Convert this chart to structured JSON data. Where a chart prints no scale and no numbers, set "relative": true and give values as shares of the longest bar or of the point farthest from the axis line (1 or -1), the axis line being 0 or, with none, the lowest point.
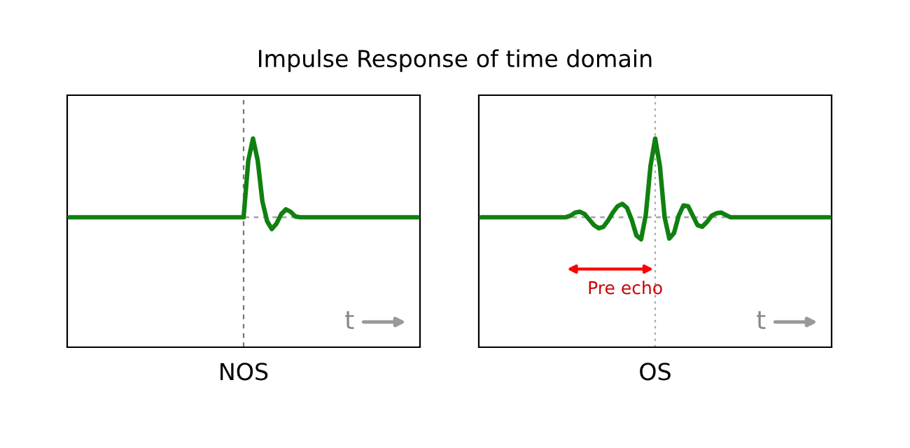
{
  "chart_data": [
    {
      "type": "line",
      "title": "Impulse Response of time domain",
      "xlabel": "NOS",
      "relative": true,
      "categories": [
        null,
        null,
        null,
        null,
        null,
        null,
        null,
        null,
        null,
        null,
        null,
        null,
        null,
        null,
        null,
        null,
        null,
        null,
        null,
        null,
        null,
        null,
        null,
        null,
        null,
        null,
        null,
        null,
        null,
        null,
        null,
        null,
        null,
        null,
        null,
        null,
        null,
        null,
        null,
        null,
        null,
        null,
        null,
        null,
        null,
        null,
        null,
        null,
        null,
        null,
        null,
        null,
        null,
        null,
        null,
        null,
        null,
        null,
        null,
        null,
        null,
        null,
        null,
        null,
        null,
        null,
        null,
        null,
        null,
        null,
        null,
        null,
        null,
        null,
        null
      ],
      "series": [
        {
          "color": "#108010",
          "values": [
            0,
            0,
            0,
            0,
            0,
            0,
            0,
            0,
            0,
            0,
            0,
            0,
            0,
            0,
            0,
            0,
            0,
            0,
            0,
            0,
            0,
            0,
            0,
            0,
            0,
            0,
            0,
            0,
            0,
            0,
            0,
            0,
            0,
            0,
            0,
            0,
            0,
            0,
            0.72,
            1,
            0.72,
            0.2,
            -0.05,
            -0.15,
            -0.08,
            0.04,
            0.1,
            0.07,
            0.01,
            0,
            0,
            0,
            0,
            0,
            0,
            0,
            0,
            0,
            0,
            0,
            0,
            0,
            0,
            0,
            0,
            0,
            0,
            0,
            0,
            0,
            0,
            0,
            0,
            0,
            0
          ]
        }
      ],
      "ref_lines": [
        {
          "axis": "y",
          "value": 0,
          "color": "#999999",
          "line_style": "dashed"
        }
      ],
      "annotations": [
        "t"
      ]
    },
    {
      "type": "line",
      "xlabel": "OS",
      "relative": true,
      "categories": [
        null,
        null,
        null,
        null,
        null,
        null,
        null,
        null,
        null,
        null,
        null,
        null,
        null,
        null,
        null,
        null,
        null,
        null,
        null,
        null,
        null,
        null,
        null,
        null,
        null,
        null,
        null,
        null,
        null,
        null,
        null,
        null,
        null,
        null,
        null,
        null,
        null,
        null,
        null,
        null,
        null,
        null,
        null,
        null,
        null,
        null,
        null,
        null,
        null,
        null,
        null,
        null,
        null,
        null,
        null,
        null,
        null,
        null,
        null,
        null,
        null,
        null,
        null,
        null,
        null,
        null,
        null,
        null,
        null,
        null,
        null,
        null,
        null,
        null,
        null
      ],
      "series": [
        {
          "color": "#108010",
          "values": [
            0,
            0,
            0,
            0,
            0,
            0,
            0,
            0,
            0,
            0,
            0,
            0,
            0,
            0,
            0,
            0,
            0,
            0,
            0,
            0.02,
            0.06,
            0.07,
            0.04,
            -0.03,
            -0.1,
            -0.14,
            -0.12,
            -0.04,
            0.06,
            0.14,
            0.17,
            0.12,
            -0.03,
            -0.23,
            -0.28,
            0.03,
            0.65,
            1,
            0.65,
            0,
            -0.27,
            -0.2,
            0.02,
            0.15,
            0.14,
            0.02,
            -0.1,
            -0.12,
            -0.06,
            0.02,
            0.05,
            0.06,
            0.03,
            0,
            0,
            0,
            0,
            0,
            0,
            0,
            0,
            0,
            0,
            0,
            0,
            0,
            0,
            0,
            0,
            0,
            0,
            0,
            0,
            0,
            0
          ]
        }
      ],
      "ref_lines": [
        {
          "axis": "y",
          "value": 0,
          "color": "#999999",
          "line_style": "dashed"
        }
      ],
      "annotations": [
        "Pre echo",
        "t"
      ]
    }
  ]
}
